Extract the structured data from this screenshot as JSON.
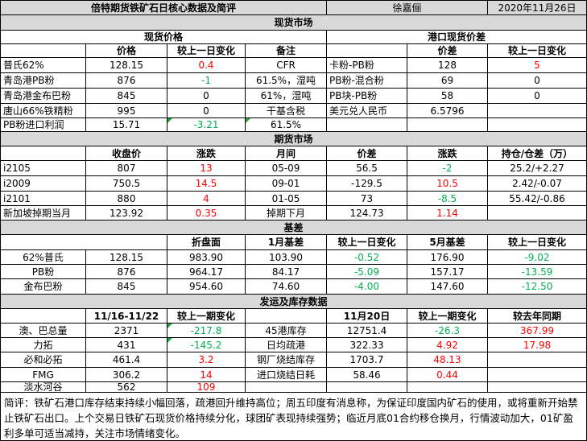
{
  "header": {
    "title": "倍特期货铁矿石日核心数据及简评",
    "author": "徐嘉俪",
    "date": "2020年11月26日"
  },
  "spot_section": {
    "title": "现货市场",
    "left_title": "现货价格",
    "right_title": "港口现货价差",
    "columns": [
      "价格",
      "较上一日变化",
      "备注",
      "价差",
      "较上一日变化"
    ],
    "rows": [
      {
        "name": "普氏62%",
        "price": "128.15",
        "change": "0.4",
        "note": "CFR",
        "spread_name": "卡粉-PB粉",
        "spread": "128",
        "spread_change": "5"
      },
      {
        "name": "青岛港PB粉",
        "price": "876",
        "change": "-1",
        "note": "61.5%，湿吨",
        "spread_name": "PB粉-混合粉",
        "spread": "69",
        "spread_change": "0"
      },
      {
        "name": "青岛港金布巴粉",
        "price": "845",
        "change": "0",
        "note": "61%，湿吨",
        "spread_name": "PB块-PB粉",
        "spread": "58",
        "spread_change": "0"
      },
      {
        "name": "唐山66%铁精粉",
        "price": "995",
        "change": "0",
        "note": "干基含税",
        "spread_name": "美元兑人民币",
        "spread": "6.5796",
        "spread_change": ""
      },
      {
        "name": "PB粉进口利润",
        "price": "15.71",
        "change": "-3.21",
        "note": "61.5%",
        "spread_name": "",
        "spread": "",
        "spread_change": ""
      }
    ]
  },
  "futures_section": {
    "title": "期货市场",
    "columns": [
      "收盘价",
      "涨跌",
      "月间",
      "价差",
      "涨跌",
      "持仓/仓差（万）"
    ],
    "rows": [
      {
        "name": "i2105",
        "close": "807",
        "change": "13",
        "spread_name": "05-09",
        "spread": "56.5",
        "spread_change": "-2",
        "oi": "25.2/+2.27"
      },
      {
        "name": "i2009",
        "close": "750.5",
        "change": "14.5",
        "spread_name": "09-01",
        "spread": "-129.5",
        "spread_change": "10.5",
        "oi": "2.42/-0.07"
      },
      {
        "name": "i2101",
        "close": "880",
        "change": "4",
        "spread_name": "01-05",
        "spread": "73",
        "spread_change": "-8.5",
        "oi": "55.42/-0.86"
      },
      {
        "name": "新加坡掉期当月",
        "close": "123.92",
        "change": "0.35",
        "spread_name": "掉期下月",
        "spread": "124.73",
        "spread_change": "1.14",
        "oi": ""
      }
    ]
  },
  "basis_section": {
    "title": "基差",
    "columns": [
      "折盘面",
      "1月基差",
      "较上一日变化",
      "5月基差",
      "较上一日变化"
    ],
    "rows": [
      {
        "name": "62%普氏",
        "price": "128.15",
        "converted": "983.90",
        "basis1": "103.90",
        "basis1_change": "-0.52",
        "basis5": "176.90",
        "basis5_change": "-9.02"
      },
      {
        "name": "PB粉",
        "price": "876",
        "converted": "964.17",
        "basis1": "84.17",
        "basis1_change": "-5.09",
        "basis5": "157.17",
        "basis5_change": "-13.59"
      },
      {
        "name": "金布巴粉",
        "price": "845",
        "converted": "954.60",
        "basis1": "74.60",
        "basis1_change": "-4.00",
        "basis5": "147.60",
        "basis5_change": "-12.50"
      }
    ]
  },
  "shipment_section": {
    "title": "发运及库存数据",
    "left_columns": [
      "11/16-11/22",
      "较上一期变化"
    ],
    "right_columns": [
      "11月20日",
      "较上一期变化",
      "较去年同期"
    ],
    "rows": [
      {
        "name": "澳、巴总量",
        "value": "2371",
        "change": "-217.8",
        "r_name": "45港库存",
        "r_value": "12751.4",
        "r_change": "-26.3",
        "r_yoy": "367.99"
      },
      {
        "name": "力拓",
        "value": "431",
        "change": "-145.2",
        "r_name": "日均疏港",
        "r_value": "322.33",
        "r_change": "4.92",
        "r_yoy": "17.98"
      },
      {
        "name": "必和必拓",
        "value": "461.4",
        "change": "3.2",
        "r_name": "钢厂烧结库存",
        "r_value": "1703.7",
        "r_change": "48.13",
        "r_yoy": ""
      },
      {
        "name": "FMG",
        "value": "306.2",
        "change": "14",
        "r_name": "进口烧结日耗",
        "r_value": "58.46",
        "r_change": "0.44",
        "r_yoy": ""
      },
      {
        "name": "淡水河谷",
        "value": "562",
        "change": "109",
        "r_name": "",
        "r_value": "",
        "r_change": "",
        "r_yoy": ""
      }
    ]
  },
  "comment": "简评：铁矿石港口库存结束持续小幅回落，疏港回升维持高位；周五印度有消息称，为保证印度国内矿石的使用，或将重新开始禁止铁矿石出口。上个交易日铁矿石现货价格持续分化，球团矿表现持续强势；临近月底01合约移仓换月，行情波动加大，01矿盈利多单可适当减持，关注市场情绪变化。",
  "colors": {
    "header_gray": "#d9d9d9",
    "up_red": "#ff0000",
    "down_green": "#00b050",
    "comment_flag_green": "#18a63e"
  }
}
